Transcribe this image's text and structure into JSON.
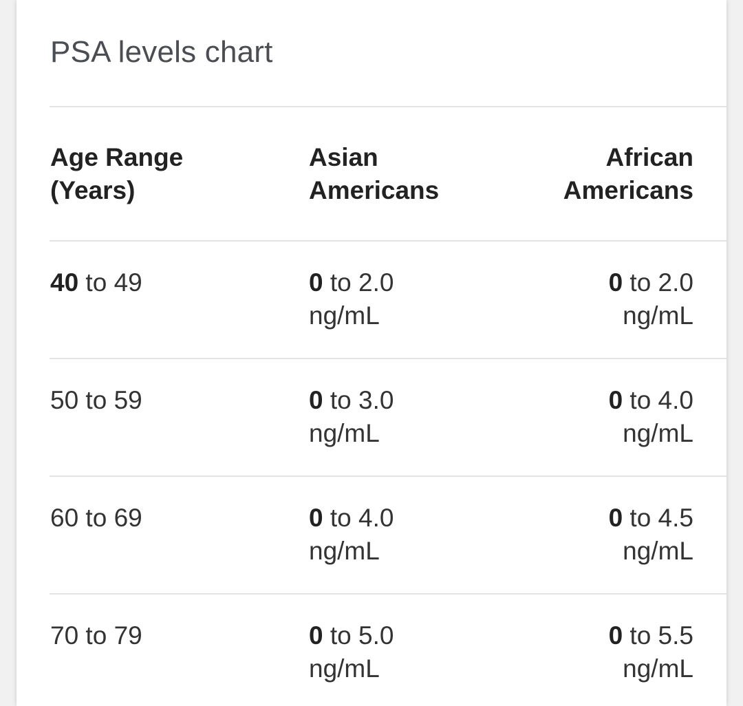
{
  "card": {
    "title": "PSA levels chart"
  },
  "table": {
    "header": {
      "age": [
        "Age Range",
        "(Years)"
      ],
      "asian": [
        "Asian",
        "Americans"
      ],
      "african": [
        "African",
        "Americans"
      ]
    },
    "rows": [
      {
        "age_bold": "40",
        "age_rest": " to 49",
        "asian_bold": "0",
        "asian_rest": " to 2.0",
        "asian_unit": "ng/mL",
        "african_bold": "0",
        "african_rest": " to 2.0",
        "african_unit": "ng/mL"
      },
      {
        "age_text": "50 to 59",
        "asian_bold": "0",
        "asian_rest": " to 3.0",
        "asian_unit": "ng/mL",
        "african_bold": "0",
        "african_rest": " to 4.0",
        "african_unit": "ng/mL"
      },
      {
        "age_text": "60 to 69",
        "asian_bold": "0",
        "asian_rest": " to 4.0",
        "asian_unit": "ng/mL",
        "african_bold": "0",
        "african_rest": " to 4.5",
        "african_unit": "ng/mL"
      },
      {
        "age_text": "70 to 79",
        "asian_bold": "0",
        "asian_rest": " to 5.0",
        "asian_unit": "ng/mL",
        "african_bold": "0",
        "african_rest": " to 5.5",
        "african_unit": "ng/mL"
      }
    ]
  }
}
